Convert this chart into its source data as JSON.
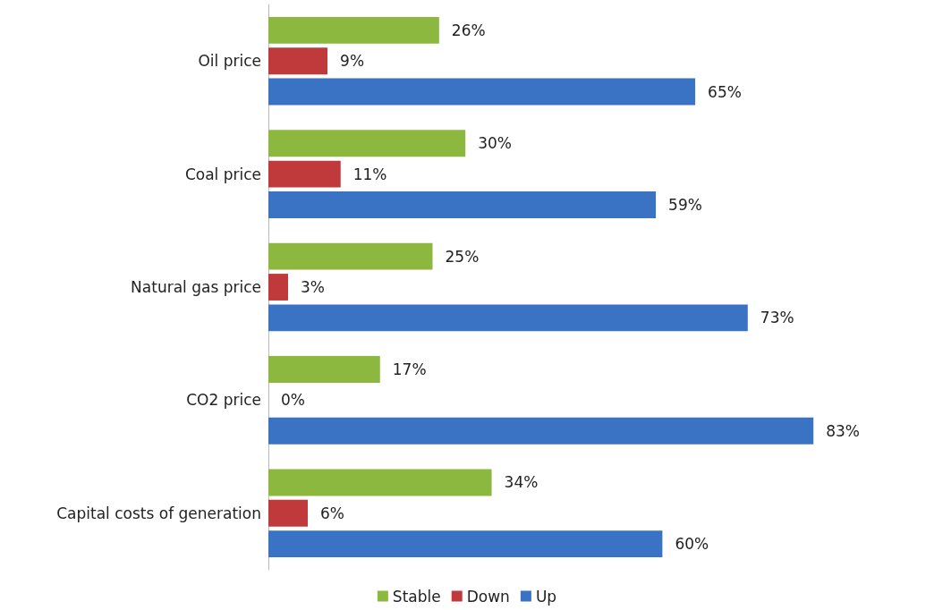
{
  "chart_data": {
    "type": "bar",
    "orientation": "horizontal",
    "categories": [
      "Oil price",
      "Coal price",
      "Natural gas price",
      "CO2 price",
      "Capital costs of generation"
    ],
    "series": [
      {
        "name": "Stable",
        "color": "#8db83f",
        "values": [
          26,
          30,
          25,
          17,
          34
        ],
        "value_labels": [
          "26%",
          "30%",
          "25%",
          "17%",
          "34%"
        ]
      },
      {
        "name": "Down",
        "color": "#c0393b",
        "values": [
          9,
          11,
          3,
          0,
          6
        ],
        "value_labels": [
          "9%",
          "11%",
          "3%",
          "0%",
          "6%"
        ]
      },
      {
        "name": "Up",
        "color": "#3a73c4",
        "values": [
          65,
          59,
          73,
          83,
          60
        ],
        "value_labels": [
          "65%",
          "59%",
          "73%",
          "83%",
          "60%"
        ]
      }
    ],
    "legend": "bottom",
    "grid": false
  }
}
